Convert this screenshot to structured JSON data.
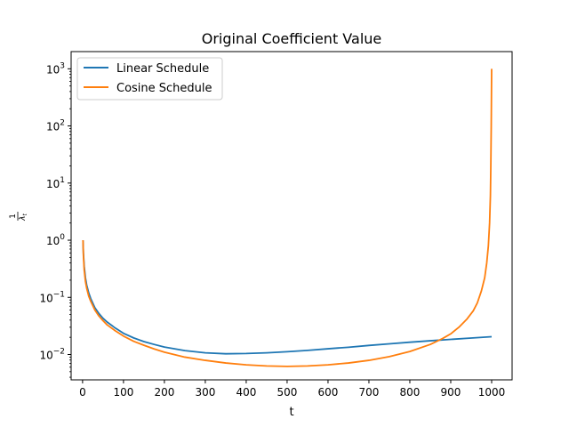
{
  "chart_data": {
    "type": "line",
    "title": "Original Coefficient Value",
    "xlabel": "t",
    "ylabel_numerator": "1",
    "ylabel_denominator": "λ",
    "ylabel_subscript": "t",
    "yscale": "log",
    "xlim": [
      -28,
      1050
    ],
    "ylim": [
      0.0036,
      2000
    ],
    "x_ticks": [
      0,
      100,
      200,
      300,
      400,
      500,
      600,
      700,
      800,
      900,
      1000
    ],
    "y_ticks": [
      {
        "value": 0.01,
        "base": "10",
        "exp": "−2"
      },
      {
        "value": 0.1,
        "base": "10",
        "exp": "−1"
      },
      {
        "value": 1,
        "base": "10",
        "exp": "0"
      },
      {
        "value": 10,
        "base": "10",
        "exp": "1"
      },
      {
        "value": 100,
        "base": "10",
        "exp": "2"
      },
      {
        "value": 1000,
        "base": "10",
        "exp": "3"
      }
    ],
    "grid": false,
    "legend_position": "top-left",
    "series": [
      {
        "name": "Linear Schedule",
        "color": "#1f77b4",
        "points": [
          [
            1,
            1.0
          ],
          [
            2,
            0.6
          ],
          [
            4,
            0.35
          ],
          [
            7,
            0.22
          ],
          [
            10,
            0.165
          ],
          [
            15,
            0.12
          ],
          [
            20,
            0.095
          ],
          [
            30,
            0.066
          ],
          [
            40,
            0.052
          ],
          [
            50,
            0.043
          ],
          [
            60,
            0.037
          ],
          [
            80,
            0.029
          ],
          [
            100,
            0.0235
          ],
          [
            125,
            0.0195
          ],
          [
            150,
            0.0168
          ],
          [
            175,
            0.015
          ],
          [
            200,
            0.0135
          ],
          [
            250,
            0.0117
          ],
          [
            300,
            0.0107
          ],
          [
            350,
            0.0103
          ],
          [
            400,
            0.0104
          ],
          [
            450,
            0.0107
          ],
          [
            500,
            0.0112
          ],
          [
            550,
            0.0118
          ],
          [
            600,
            0.0126
          ],
          [
            650,
            0.0134
          ],
          [
            700,
            0.0144
          ],
          [
            750,
            0.0154
          ],
          [
            800,
            0.0164
          ],
          [
            850,
            0.0174
          ],
          [
            900,
            0.0184
          ],
          [
            950,
            0.0194
          ],
          [
            1000,
            0.0205
          ]
        ]
      },
      {
        "name": "Cosine Schedule",
        "color": "#ff7f0e",
        "points": [
          [
            1,
            1.0
          ],
          [
            2,
            0.55
          ],
          [
            4,
            0.3
          ],
          [
            7,
            0.19
          ],
          [
            10,
            0.145
          ],
          [
            15,
            0.105
          ],
          [
            20,
            0.085
          ],
          [
            30,
            0.06
          ],
          [
            40,
            0.047
          ],
          [
            50,
            0.039
          ],
          [
            60,
            0.033
          ],
          [
            80,
            0.026
          ],
          [
            100,
            0.021
          ],
          [
            125,
            0.017
          ],
          [
            150,
            0.0145
          ],
          [
            175,
            0.0125
          ],
          [
            200,
            0.011
          ],
          [
            250,
            0.009
          ],
          [
            300,
            0.0079
          ],
          [
            350,
            0.0071
          ],
          [
            400,
            0.0066
          ],
          [
            450,
            0.0063
          ],
          [
            500,
            0.0062
          ],
          [
            550,
            0.0063
          ],
          [
            600,
            0.0066
          ],
          [
            650,
            0.0071
          ],
          [
            700,
            0.0079
          ],
          [
            750,
            0.0092
          ],
          [
            800,
            0.0113
          ],
          [
            850,
            0.015
          ],
          [
            880,
            0.019
          ],
          [
            900,
            0.023
          ],
          [
            920,
            0.03
          ],
          [
            940,
            0.042
          ],
          [
            955,
            0.058
          ],
          [
            965,
            0.08
          ],
          [
            975,
            0.13
          ],
          [
            983,
            0.22
          ],
          [
            988,
            0.4
          ],
          [
            992,
            0.8
          ],
          [
            995,
            2.0
          ],
          [
            997,
            6.0
          ],
          [
            998,
            20.0
          ],
          [
            999,
            100.0
          ],
          [
            1000,
            1000.0
          ]
        ]
      }
    ]
  }
}
